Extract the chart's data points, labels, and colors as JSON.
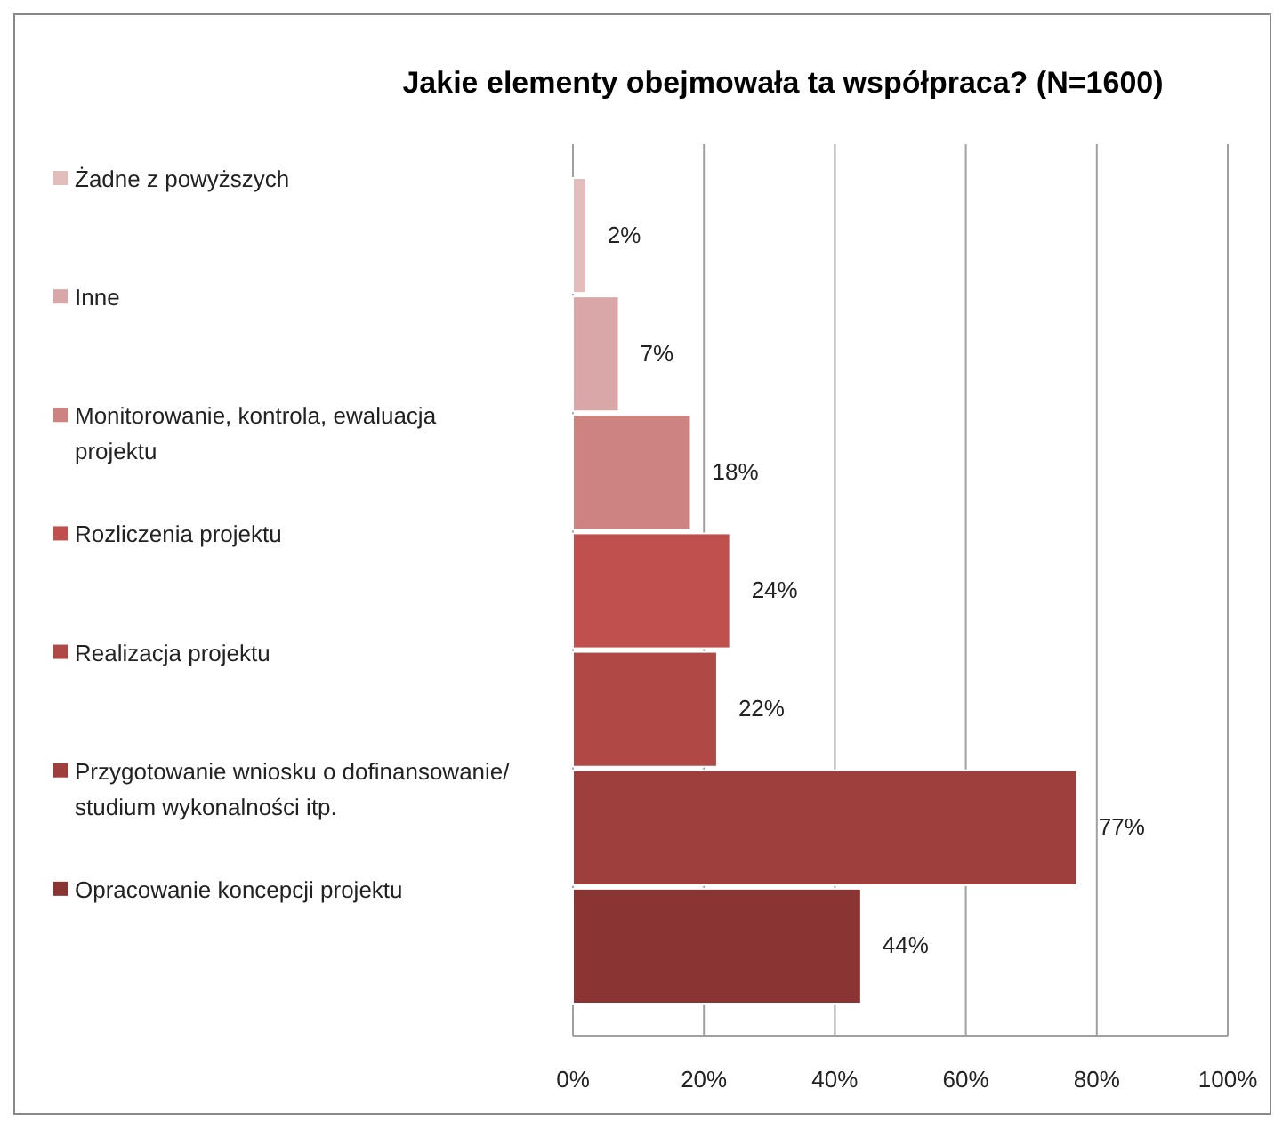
{
  "chart_data": {
    "type": "bar",
    "orientation": "horizontal",
    "title": "Jakie elementy obejmowała ta współpraca? (N=1600)",
    "categories": [
      null
    ],
    "series": [
      {
        "name": "Żadne z powyższych",
        "color": "#e3bcbc",
        "values": [
          2
        ],
        "value_labels": [
          "2%"
        ]
      },
      {
        "name": "Inne",
        "color": "#d9a7a7",
        "values": [
          7
        ],
        "value_labels": [
          "7%"
        ]
      },
      {
        "name": "Monitorowanie, kontrola, ewaluacja projektu",
        "color": "#cd8380",
        "values": [
          18
        ],
        "value_labels": [
          "18%"
        ]
      },
      {
        "name": "Rozliczenia projektu",
        "color": "#c0504d",
        "values": [
          24
        ],
        "value_labels": [
          "24%"
        ]
      },
      {
        "name": "Realizacja projektu",
        "color": "#b04845",
        "values": [
          22
        ],
        "value_labels": [
          "22%"
        ]
      },
      {
        "name": "Przygotowanie wniosku o dofinansowanie/ studium wykonalności itp.",
        "color": "#9e3f3e",
        "values": [
          77
        ],
        "value_labels": [
          "77%"
        ]
      },
      {
        "name": "Opracowanie koncepcji projektu",
        "color": "#8a3533",
        "values": [
          44
        ],
        "value_labels": [
          "44%"
        ]
      }
    ],
    "xlim": [
      0,
      100
    ],
    "xticks": [
      {
        "value": 0,
        "label": "0%"
      },
      {
        "value": 20,
        "label": "20%"
      },
      {
        "value": 40,
        "label": "40%"
      },
      {
        "value": 60,
        "label": "60%"
      },
      {
        "value": 80,
        "label": "80%"
      },
      {
        "value": 100,
        "label": "100%"
      }
    ],
    "grid": "x",
    "legend": "left"
  }
}
